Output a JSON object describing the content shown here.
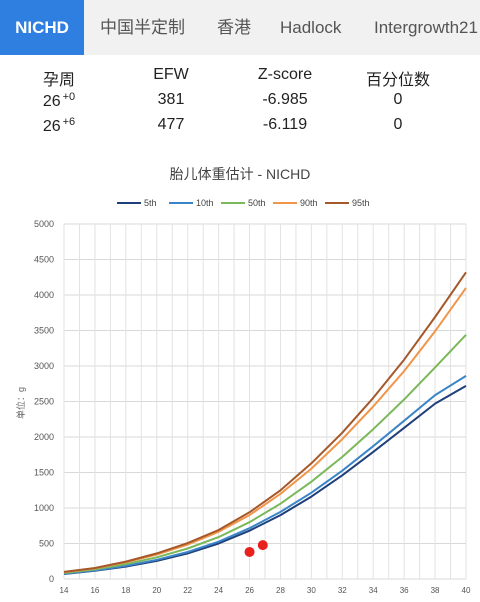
{
  "tabs": [
    {
      "label": "NICHD",
      "active": true
    },
    {
      "label": "中国半定制",
      "active": false
    },
    {
      "label": "香港",
      "active": false
    },
    {
      "label": "Hadlock",
      "active": false
    },
    {
      "label": "Intergrowth21",
      "active": false
    }
  ],
  "results": {
    "headers": [
      "孕周",
      "EFW",
      "Z-score",
      "百分位数"
    ],
    "rows": [
      {
        "week": "26",
        "day": "+0",
        "efw": "381",
        "zscore": "-6.985",
        "percentile": "0"
      },
      {
        "week": "26",
        "day": "+6",
        "efw": "477",
        "zscore": "-6.119",
        "percentile": "0"
      }
    ]
  },
  "chart_data": {
    "type": "line",
    "title": "胎儿体重估计 - NICHD",
    "ylabel": "单位：g",
    "xlabel": "",
    "ylim": [
      0,
      5000
    ],
    "yticks": [
      0,
      500,
      1000,
      1500,
      2000,
      2500,
      3000,
      3500,
      4000,
      4500,
      5000
    ],
    "xlim": [
      14,
      40
    ],
    "grid": true,
    "legend_position": "top",
    "x": [
      14,
      16,
      18,
      20,
      22,
      24,
      26,
      28,
      30,
      32,
      34,
      36,
      38,
      40
    ],
    "series": [
      {
        "name": "5th",
        "color": "#1f3f7a",
        "values": [
          70,
          115,
          175,
          255,
          360,
          500,
          680,
          900,
          1160,
          1460,
          1790,
          2130,
          2470,
          2720
        ]
      },
      {
        "name": "10th",
        "color": "#3a85c8",
        "values": [
          75,
          120,
          185,
          270,
          380,
          525,
          715,
          945,
          1215,
          1525,
          1870,
          2230,
          2590,
          2860
        ]
      },
      {
        "name": "50th",
        "color": "#7ab85a",
        "values": [
          85,
          135,
          210,
          305,
          430,
          590,
          800,
          1060,
          1370,
          1720,
          2110,
          2530,
          2980,
          3440
        ]
      },
      {
        "name": "90th",
        "color": "#f0964a",
        "values": [
          95,
          150,
          235,
          345,
          485,
          665,
          900,
          1200,
          1555,
          1970,
          2430,
          2930,
          3490,
          4100
        ]
      },
      {
        "name": "95th",
        "color": "#a5582a",
        "values": [
          100,
          155,
          245,
          360,
          505,
          690,
          940,
          1250,
          1630,
          2060,
          2550,
          3090,
          3690,
          4320
        ]
      }
    ],
    "points": [
      {
        "x": 26.0,
        "y": 381,
        "color": "#e8201e"
      },
      {
        "x": 26.857,
        "y": 477,
        "color": "#e8201e"
      }
    ]
  }
}
